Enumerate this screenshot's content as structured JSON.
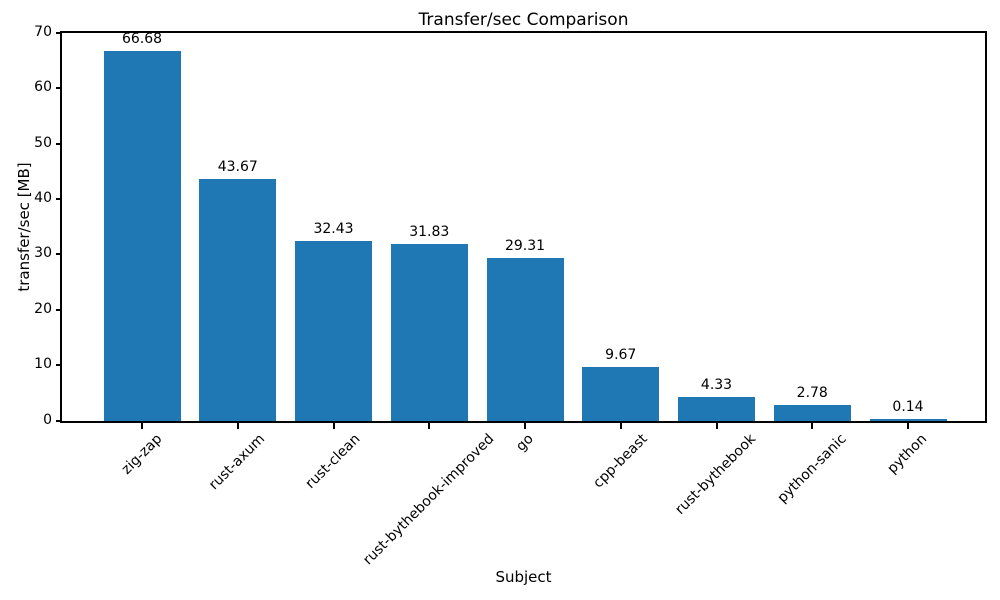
{
  "figure": {
    "background": "#ffffff",
    "text_color": "#000000"
  },
  "chart_data": {
    "type": "bar",
    "title": "Transfer/sec Comparison",
    "xlabel": "Subject",
    "ylabel": "transfer/sec [MB]",
    "categories": [
      "zig-zap",
      "rust-axum",
      "rust-clean",
      "rust-bythebook-improved",
      "go",
      "cpp-beast",
      "rust-bythebook",
      "python-sanic",
      "python"
    ],
    "values": [
      66.68,
      43.67,
      32.43,
      31.83,
      29.31,
      9.67,
      4.33,
      2.78,
      0.14
    ],
    "value_labels": [
      "66.68",
      "43.67",
      "32.43",
      "31.83",
      "29.31",
      "9.67",
      "4.33",
      "2.78",
      "0.14"
    ],
    "ylim": [
      0,
      70
    ],
    "yticks": [
      0,
      10,
      20,
      30,
      40,
      50,
      60,
      70
    ],
    "ytick_labels": [
      "0",
      "10",
      "20",
      "30",
      "40",
      "50",
      "60",
      "70"
    ],
    "bar_color": "#1f77b4",
    "grid": false,
    "legend_visible": false,
    "x_tick_rotation_deg": 45
  }
}
